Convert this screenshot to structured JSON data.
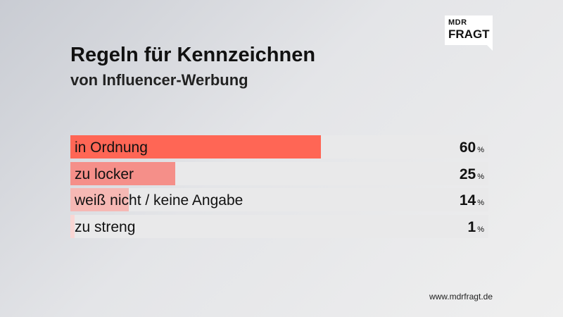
{
  "logo": {
    "top": "MDR",
    "main": "FRAGT"
  },
  "header": {
    "title": "Regeln für Kennzeichnen",
    "subtitle": "von Influencer-Werbung"
  },
  "footer": {
    "url": "www.mdrfragt.de"
  },
  "colors": {
    "accent": "#ff6655",
    "light_accent": "#f58f89",
    "track": "#e9e9ea"
  },
  "chart_data": {
    "type": "bar",
    "orientation": "horizontal",
    "title": "Regeln für Kennzeichnen",
    "subtitle": "von Influencer-Werbung",
    "unit": "%",
    "xlim": [
      0,
      100
    ],
    "categories": [
      "in Ordnung",
      "zu locker",
      "weiß nicht / keine Angabe",
      "zu streng"
    ],
    "values": [
      60,
      25,
      14,
      1
    ],
    "bar_colors": [
      "#ff6655",
      "#f58f89",
      "#f6b8b4",
      "#f9d6d4"
    ]
  }
}
